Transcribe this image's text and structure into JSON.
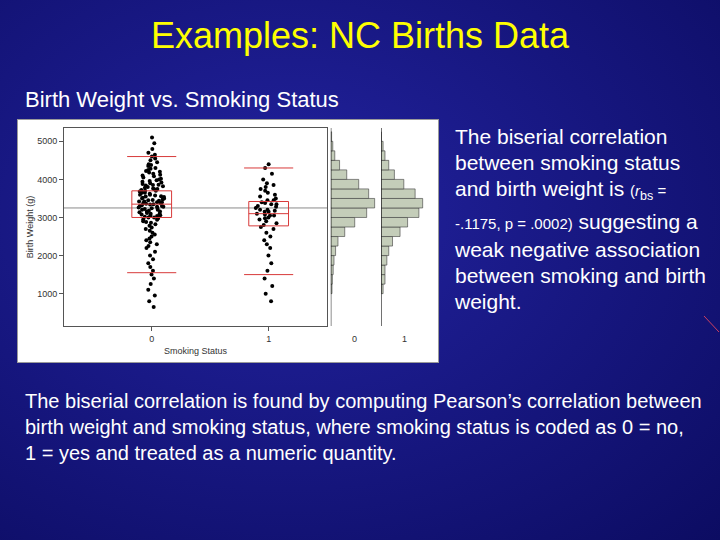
{
  "slide": {
    "title": "Examples: NC Births Data",
    "subtitle": "Birth Weight vs. Smoking Status",
    "side_text": {
      "before": "The biserial correlation between smoking status and birth weight is",
      "stat_open": "(",
      "stat_symbol": "r",
      "stat_subscript": "bs",
      "stat_rest": " = -.1175, p = .0002)",
      "after": "suggesting a weak negative association between smoking and birth weight."
    },
    "footer": "The biserial correlation is found by computing Pearson’s correlation between birth weight and smoking status, where smoking status is coded as 0 = no,  1 = yes and treated as a numeric quantity."
  },
  "chart_data": {
    "type": "scatter",
    "x_label": "Smoking Status",
    "y_label": "Birth Weight (g)",
    "xlim": [
      -0.75,
      1.5
    ],
    "xticks": [
      0,
      1
    ],
    "ylim": [
      150,
      5350
    ],
    "yticks": [
      1000,
      2000,
      3000,
      4000,
      5000
    ],
    "grid": false,
    "marker": "circle",
    "color": "#000000",
    "series": [
      {
        "x": 0,
        "values": [
          5100,
          4950,
          4800,
          4700,
          4650,
          4600,
          4550,
          4500,
          4450,
          4400,
          4380,
          4350,
          4300,
          4280,
          4250,
          4220,
          4200,
          4180,
          4150,
          4120,
          4100,
          4080,
          4050,
          4020,
          4000,
          3980,
          3960,
          3940,
          3920,
          3900,
          3880,
          3860,
          3840,
          3820,
          3800,
          3780,
          3760,
          3740,
          3720,
          3700,
          3680,
          3660,
          3640,
          3620,
          3600,
          3580,
          3560,
          3540,
          3520,
          3500,
          3480,
          3460,
          3440,
          3420,
          3400,
          3380,
          3360,
          3340,
          3320,
          3300,
          3280,
          3260,
          3240,
          3220,
          3200,
          3180,
          3160,
          3140,
          3120,
          3100,
          3080,
          3060,
          3040,
          3020,
          3000,
          2970,
          2940,
          2900,
          2860,
          2820,
          2780,
          2740,
          2700,
          2650,
          2600,
          2550,
          2500,
          2450,
          2400,
          2350,
          2300,
          2250,
          2200,
          2100,
          2000,
          1900,
          1800,
          1700,
          1600,
          1500,
          1400,
          1250,
          1100,
          950,
          800,
          650,
          3350,
          3450,
          3550,
          3250,
          3150,
          3650,
          3050,
          3500,
          3300,
          3400,
          3600,
          3200,
          3700,
          3100,
          3000,
          3380,
          3420,
          3280,
          3850,
          3750,
          2950,
          2880
        ]
      },
      {
        "x": 1,
        "values": [
          4400,
          4300,
          4150,
          4000,
          3900,
          3850,
          3800,
          3750,
          3700,
          3650,
          3600,
          3550,
          3500,
          3450,
          3400,
          3380,
          3350,
          3300,
          3280,
          3250,
          3200,
          3180,
          3150,
          3100,
          3080,
          3050,
          3000,
          2980,
          2950,
          2900,
          2850,
          2800,
          2750,
          2700,
          2600,
          2500,
          2400,
          2300,
          2200,
          2000,
          1800,
          1600,
          1400,
          1200,
          1000,
          800,
          3350,
          3200,
          3050,
          3450,
          3150
        ]
      }
    ],
    "quantile_boxes": [
      {
        "x": 0,
        "low": 1550,
        "q1": 3000,
        "median": 3350,
        "q3": 3700,
        "high": 4600
      },
      {
        "x": 1,
        "low": 1500,
        "q1": 2780,
        "median": 3100,
        "q3": 3420,
        "high": 4300
      }
    ],
    "mean_line": 3250,
    "histograms": [
      {
        "label": "0",
        "xlim": [
          0,
          120
        ],
        "bins": [
          1000,
          1250,
          1500,
          1750,
          2000,
          2250,
          2500,
          2750,
          3000,
          3250,
          3500,
          3750,
          4000,
          4250,
          4500,
          4750,
          5000,
          5250
        ],
        "counts": [
          3,
          4,
          6,
          8,
          12,
          18,
          35,
          60,
          90,
          110,
          95,
          70,
          40,
          22,
          10,
          5,
          2
        ]
      },
      {
        "label": "1",
        "xlim": [
          0,
          25
        ],
        "bins": [
          1000,
          1250,
          1500,
          1750,
          2000,
          2250,
          2500,
          2750,
          3000,
          3250,
          3500,
          3750,
          4000,
          4250,
          4500,
          4750,
          5000,
          5250
        ],
        "counts": [
          1,
          2,
          2,
          3,
          4,
          6,
          10,
          14,
          20,
          22,
          18,
          12,
          7,
          4,
          2,
          1,
          0
        ]
      }
    ]
  }
}
